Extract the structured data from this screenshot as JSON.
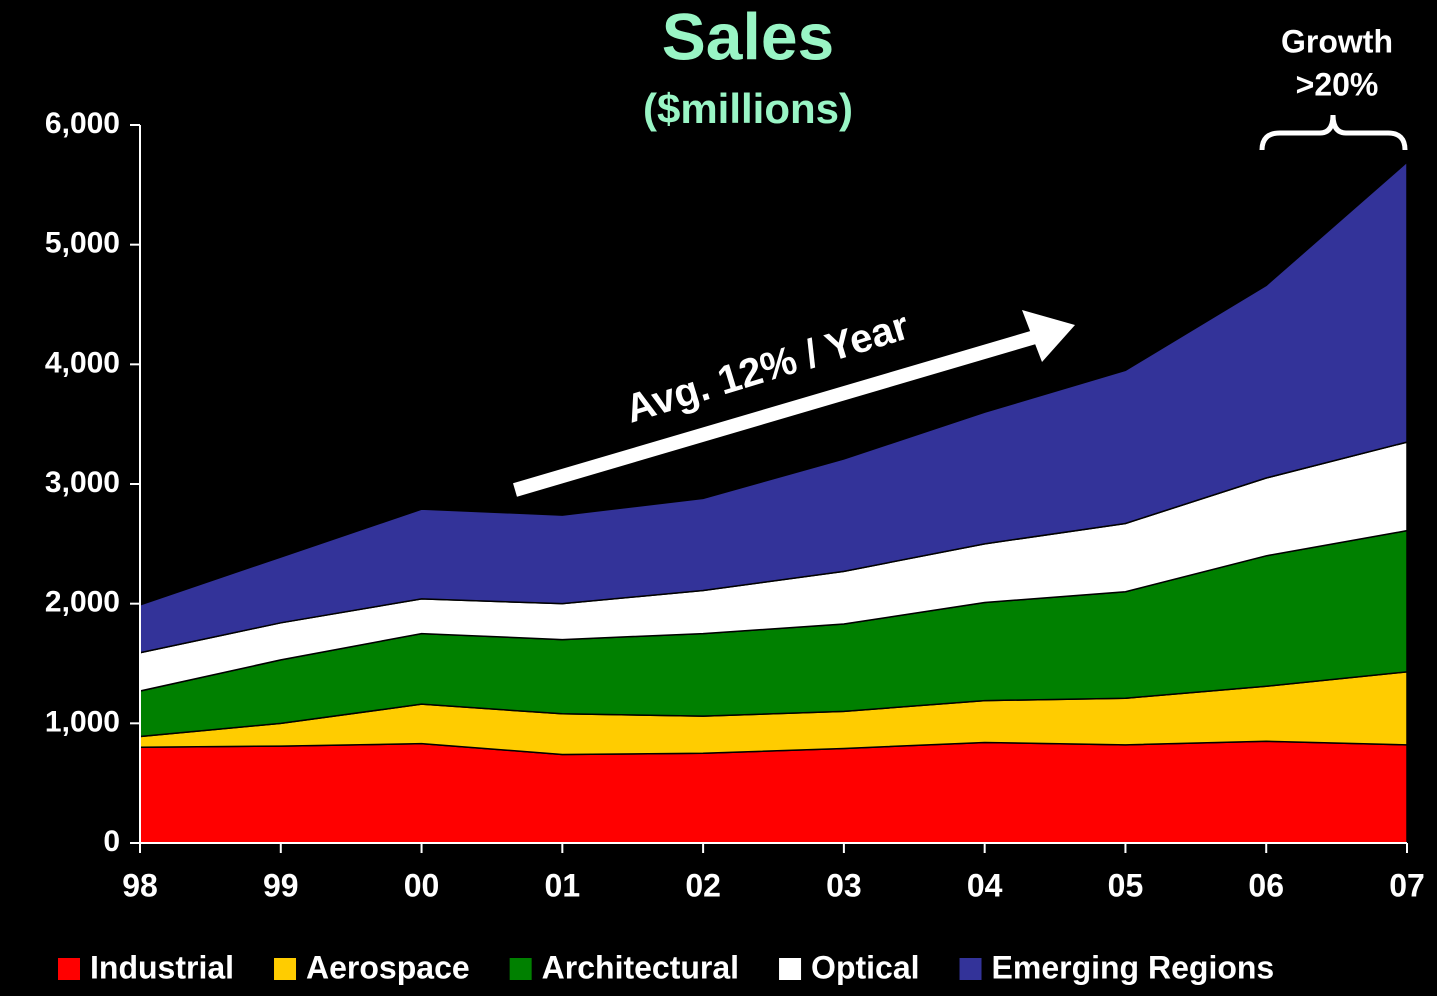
{
  "chart_data": {
    "type": "stacked-area",
    "title": "Sales",
    "subtitle": "($millions)",
    "annotations": [
      "Avg. 12% / Year",
      "Growth",
      ">20%"
    ],
    "categories": [
      "98",
      "99",
      "00",
      "01",
      "02",
      "03",
      "04",
      "05",
      "06",
      "07"
    ],
    "series": [
      {
        "name": "Industrial",
        "color": "#ff0000",
        "values": [
          800,
          810,
          830,
          740,
          750,
          790,
          840,
          820,
          850,
          820
        ]
      },
      {
        "name": "Aerospace",
        "color": "#ffcc00",
        "values": [
          90,
          190,
          330,
          340,
          310,
          310,
          350,
          390,
          460,
          610
        ]
      },
      {
        "name": "Architectural",
        "color": "#008000",
        "values": [
          380,
          530,
          590,
          620,
          690,
          730,
          820,
          890,
          1090,
          1180
        ]
      },
      {
        "name": "Optical",
        "color": "#ffffff",
        "values": [
          320,
          310,
          290,
          300,
          360,
          440,
          490,
          570,
          650,
          740
        ]
      },
      {
        "name": "Emerging Regions",
        "color": "#333399",
        "values": [
          400,
          550,
          750,
          740,
          770,
          940,
          1100,
          1280,
          1610,
          2340
        ]
      }
    ],
    "ylim": [
      0,
      6000
    ],
    "yticks": [
      0,
      {
        "value": 1000,
        "label": "1,000"
      },
      {
        "value": 2000,
        "label": "2,000"
      },
      {
        "value": 3000,
        "label": "3,000"
      },
      {
        "value": 4000,
        "label": "4,000"
      },
      {
        "value": 5000,
        "label": "5,000"
      },
      {
        "value": 6000,
        "label": "6,000"
      }
    ],
    "legend": "bottom"
  }
}
